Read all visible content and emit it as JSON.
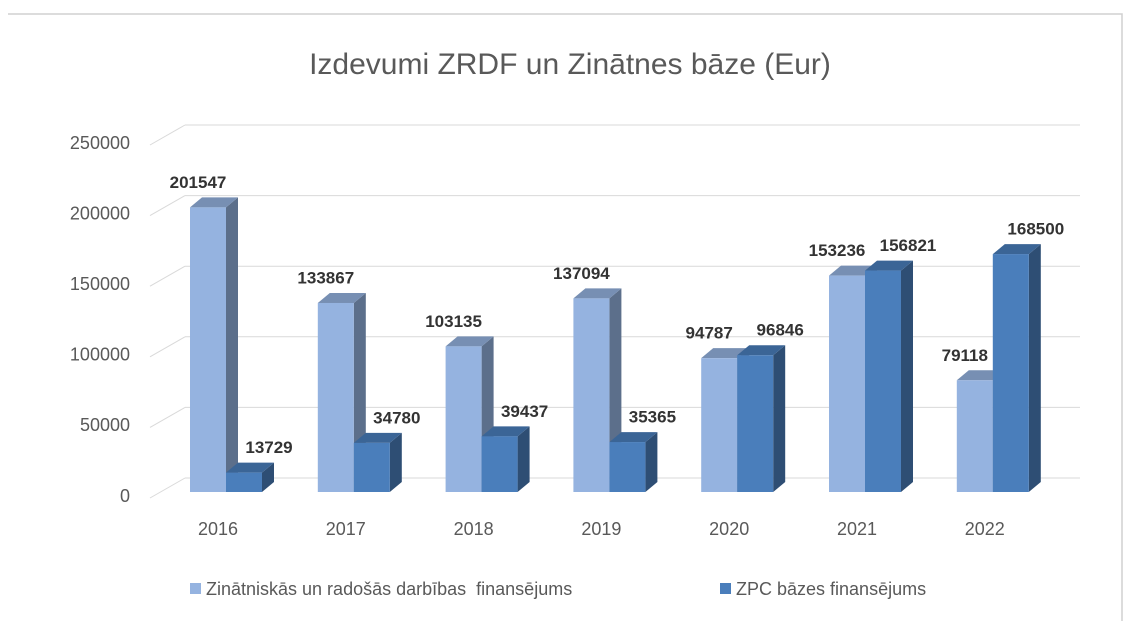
{
  "chart_data": {
    "type": "bar3d",
    "title": "Izdevumi  ZRDF un Zinātnes bāze (Eur)",
    "categories": [
      "2016",
      "2017",
      "2018",
      "2019",
      "2020",
      "2021",
      "2022"
    ],
    "series": [
      {
        "name": "Zinātniskās un radošās darbības  finansējums",
        "color": "#95b3e0",
        "values": [
          201547,
          133867,
          103135,
          137094,
          94787,
          153236,
          79118
        ]
      },
      {
        "name": "ZPC bāzes finansējums",
        "color": "#4a7ebb",
        "values": [
          13729,
          34780,
          39437,
          35365,
          96846,
          156821,
          168500
        ]
      }
    ],
    "ylim": [
      0,
      250000
    ],
    "yticks": [
      0,
      50000,
      100000,
      150000,
      200000,
      250000
    ],
    "grid": true,
    "legend": "bottom"
  }
}
